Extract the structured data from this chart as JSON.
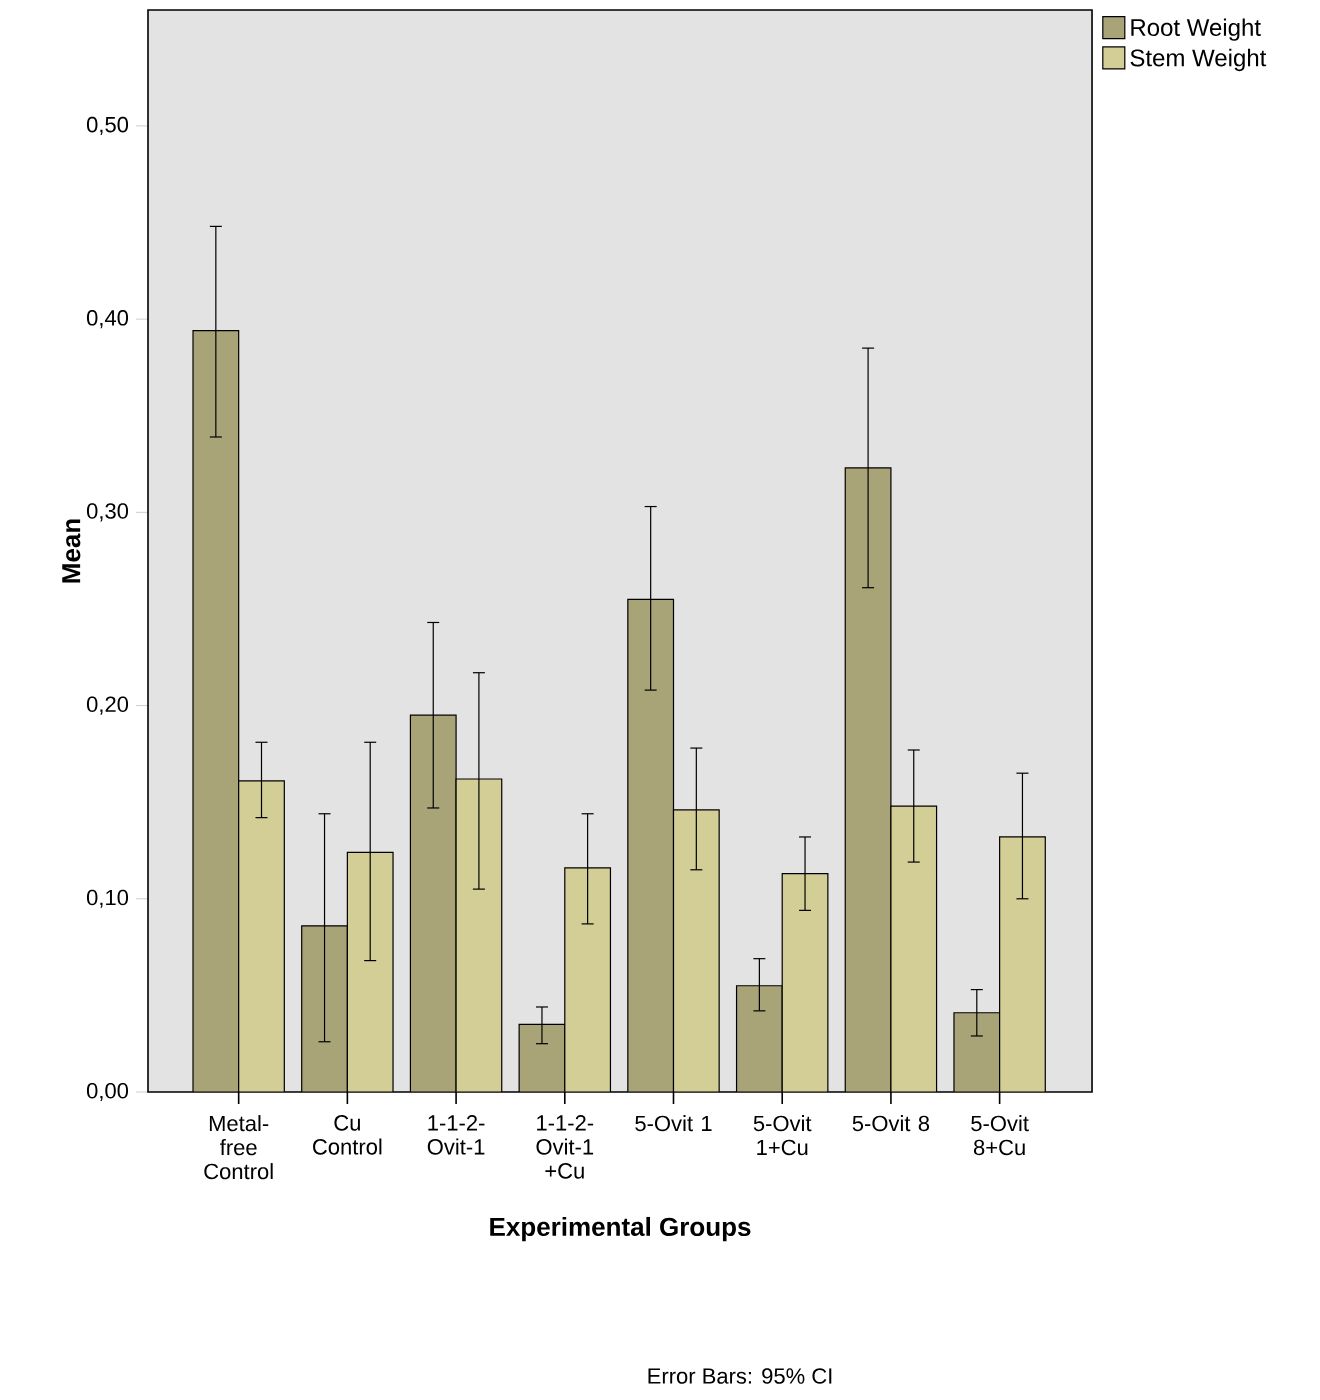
{
  "chart_data": {
    "type": "bar",
    "xlabel": "Experimental Groups",
    "ylabel": "Mean",
    "categories": [
      "Metal-free Control",
      "Cu Control",
      "1-1-2-Ovit-1",
      "1-1-2-Ovit-1 +Cu",
      "5-Ovit 1",
      "5-Ovit 1+Cu",
      "5-Ovit 8",
      "5-Ovit 8+Cu"
    ],
    "series": [
      {
        "name": "Root Weight",
        "color": "#a9a478",
        "values": [
          0.394,
          0.086,
          0.195,
          0.035,
          0.255,
          0.055,
          0.323,
          0.041
        ],
        "errors": [
          [
            0.339,
            0.448
          ],
          [
            0.026,
            0.144
          ],
          [
            0.147,
            0.243
          ],
          [
            0.025,
            0.044
          ],
          [
            0.208,
            0.303
          ],
          [
            0.042,
            0.069
          ],
          [
            0.261,
            0.385
          ],
          [
            0.029,
            0.053
          ]
        ]
      },
      {
        "name": "Stem Weight",
        "color": "#d3cd96",
        "values": [
          0.161,
          0.124,
          0.162,
          0.116,
          0.146,
          0.113,
          0.148,
          0.132
        ],
        "errors": [
          [
            0.142,
            0.181
          ],
          [
            0.068,
            0.181
          ],
          [
            0.105,
            0.217
          ],
          [
            0.087,
            0.144
          ],
          [
            0.115,
            0.178
          ],
          [
            0.094,
            0.132
          ],
          [
            0.119,
            0.177
          ],
          [
            0.1,
            0.165
          ]
        ]
      }
    ],
    "ylim": [
      0,
      0.56
    ],
    "yticks": [
      {
        "value": 0,
        "label": "0,00"
      },
      {
        "value": 0.1,
        "label": "0,10"
      },
      {
        "value": 0.2,
        "label": "0,20"
      },
      {
        "value": 0.3,
        "label": "0,30"
      },
      {
        "value": 0.4,
        "label": "0,40"
      },
      {
        "value": 0.5,
        "label": "0,50"
      }
    ],
    "grid": false,
    "legend": "top right",
    "annotations": [
      "Error Bars: 95% CI"
    ]
  }
}
